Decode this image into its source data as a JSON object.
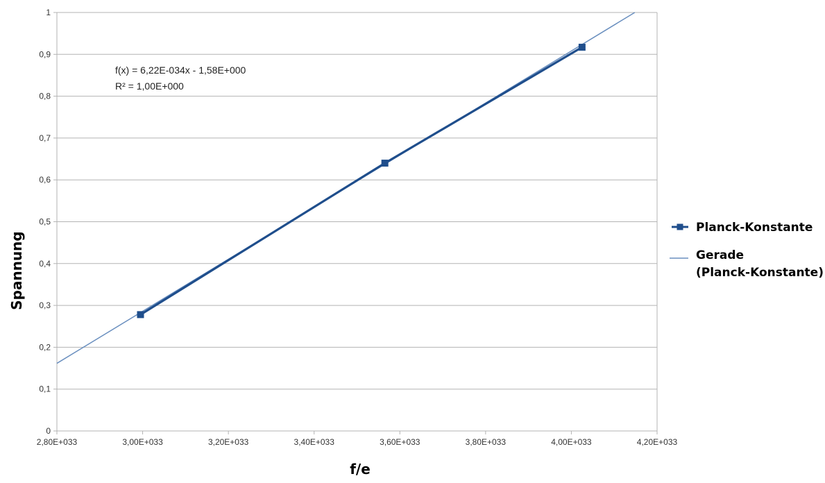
{
  "chart_data": {
    "type": "scatter",
    "title": "",
    "xlabel": "f/e",
    "ylabel": "Spannung",
    "xlim": [
      2.8e+33,
      4.2e+33
    ],
    "ylim": [
      0,
      1
    ],
    "x_ticks": [
      {
        "value": 2.8e+33,
        "label": "2,80E+033"
      },
      {
        "value": 3e+33,
        "label": "3,00E+033"
      },
      {
        "value": 3.2e+33,
        "label": "3,20E+033"
      },
      {
        "value": 3.4e+33,
        "label": "3,40E+033"
      },
      {
        "value": 3.6e+33,
        "label": "3,60E+033"
      },
      {
        "value": 3.8e+33,
        "label": "3,80E+033"
      },
      {
        "value": 4e+33,
        "label": "4,00E+033"
      },
      {
        "value": 4.2e+33,
        "label": "4,20E+033"
      }
    ],
    "y_ticks": [
      {
        "value": 0,
        "label": "0"
      },
      {
        "value": 0.1,
        "label": "0,1"
      },
      {
        "value": 0.2,
        "label": "0,2"
      },
      {
        "value": 0.3,
        "label": "0,3"
      },
      {
        "value": 0.4,
        "label": "0,4"
      },
      {
        "value": 0.5,
        "label": "0,5"
      },
      {
        "value": 0.6,
        "label": "0,6"
      },
      {
        "value": 0.7,
        "label": "0,7"
      },
      {
        "value": 0.8,
        "label": "0,8"
      },
      {
        "value": 0.9,
        "label": "0,9"
      },
      {
        "value": 1,
        "label": "1"
      }
    ],
    "grid": "horizontal",
    "legend_position": "right",
    "series": [
      {
        "name": "Planck-Konstante",
        "kind": "line-with-markers",
        "color": "#1f4e8c",
        "points": [
          {
            "x": 2.995e+33,
            "y": 0.278
          },
          {
            "x": 3.565e+33,
            "y": 0.64
          },
          {
            "x": 4.025e+33,
            "y": 0.917
          }
        ]
      },
      {
        "name": "Gerade (Planck-Konstante)",
        "legend_lines": [
          "Gerade",
          "(Planck-Konstante)"
        ],
        "kind": "trendline",
        "color": "#6a8fbf",
        "slope": 6.22e-34,
        "intercept": -1.58
      }
    ],
    "annotation": {
      "lines": [
        "f(x) = 6,22E-034x - 1,58E+000",
        "R² = 1,00E+000"
      ]
    }
  }
}
